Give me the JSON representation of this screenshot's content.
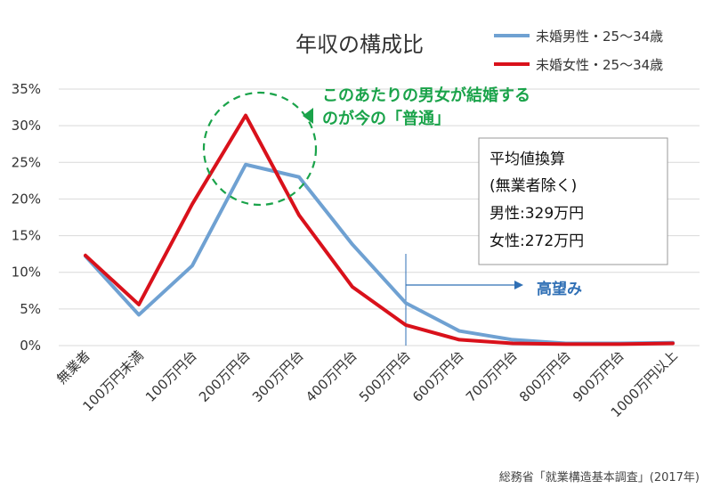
{
  "chart_data": {
    "type": "line",
    "title": "年収の構成比",
    "categories": [
      "無業者",
      "100万円未満",
      "100万円台",
      "200万円台",
      "300万円台",
      "400万円台",
      "500万円台",
      "600万円台",
      "700万円台",
      "800万円台",
      "900万円台",
      "1000万円以上"
    ],
    "series": [
      {
        "name": "未婚男性・25～34歳",
        "color": "#6fa1d2",
        "values": [
          12.2,
          4.2,
          10.9,
          24.7,
          23.0,
          13.8,
          5.8,
          2.0,
          0.8,
          0.3,
          0.3,
          0.4
        ]
      },
      {
        "name": "未婚女性・25～34歳",
        "color": "#d9111b",
        "values": [
          12.3,
          5.6,
          19.3,
          31.4,
          17.8,
          8.0,
          2.8,
          0.8,
          0.3,
          0.2,
          0.2,
          0.3
        ]
      }
    ],
    "ylim": [
      0,
      35
    ],
    "yticks": [
      "0%",
      "5%",
      "10%",
      "15%",
      "20%",
      "25%",
      "30%",
      "35%"
    ],
    "grid": true,
    "legend_position": "top-right"
  },
  "annotations": {
    "circle_note_lines": [
      "このあたりの男女が結婚する",
      "のが今の「普通」"
    ],
    "info_box_lines": [
      "平均値換算",
      "(無業者除く)",
      "男性:329万円",
      "女性:272万円"
    ],
    "arrow_label": "高望み",
    "source": "総務省「就業構造基本調査」(2017年)"
  },
  "colors": {
    "male": "#6fa1d2",
    "female": "#d9111b",
    "green": "#1aa34a",
    "arrow": "#2f6fb5",
    "grid": "#d9d9d9"
  }
}
